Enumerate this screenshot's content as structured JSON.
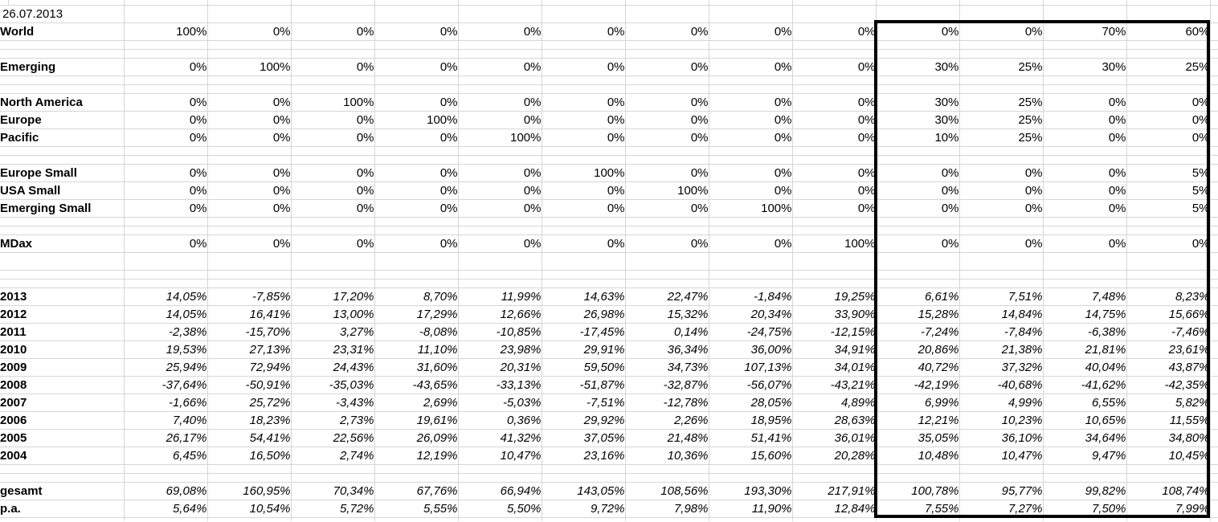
{
  "colors": {
    "background": "#ffffff",
    "gridline": "#d6d6d6",
    "text": "#000000",
    "range_border": "#000000"
  },
  "sheet": {
    "date": "26.07.2013",
    "rows": [
      {
        "kind": "sliver-top"
      },
      {
        "kind": "date",
        "label": "26.07.2013"
      },
      {
        "kind": "weight",
        "label": "World",
        "values": [
          "100%",
          "0%",
          "0%",
          "0%",
          "0%",
          "0%",
          "0%",
          "0%",
          "0%",
          "0%",
          "0%",
          "70%",
          "60%"
        ]
      },
      {
        "kind": "spacer"
      },
      {
        "kind": "spacer"
      },
      {
        "kind": "weight",
        "label": "Emerging",
        "values": [
          "0%",
          "100%",
          "0%",
          "0%",
          "0%",
          "0%",
          "0%",
          "0%",
          "0%",
          "30%",
          "25%",
          "30%",
          "25%"
        ]
      },
      {
        "kind": "spacer"
      },
      {
        "kind": "spacer"
      },
      {
        "kind": "weight",
        "label": "North America",
        "values": [
          "0%",
          "0%",
          "100%",
          "0%",
          "0%",
          "0%",
          "0%",
          "0%",
          "0%",
          "30%",
          "25%",
          "0%",
          "0%"
        ]
      },
      {
        "kind": "weight",
        "label": "Europe",
        "values": [
          "0%",
          "0%",
          "0%",
          "100%",
          "0%",
          "0%",
          "0%",
          "0%",
          "0%",
          "30%",
          "25%",
          "0%",
          "0%"
        ]
      },
      {
        "kind": "weight",
        "label": "Pacific",
        "values": [
          "0%",
          "0%",
          "0%",
          "0%",
          "100%",
          "0%",
          "0%",
          "0%",
          "0%",
          "10%",
          "25%",
          "0%",
          "0%"
        ]
      },
      {
        "kind": "spacer"
      },
      {
        "kind": "spacer"
      },
      {
        "kind": "weight",
        "label": "Europe Small",
        "values": [
          "0%",
          "0%",
          "0%",
          "0%",
          "0%",
          "100%",
          "0%",
          "0%",
          "0%",
          "0%",
          "0%",
          "0%",
          "5%"
        ]
      },
      {
        "kind": "weight",
        "label": "USA Small",
        "values": [
          "0%",
          "0%",
          "0%",
          "0%",
          "0%",
          "0%",
          "100%",
          "0%",
          "0%",
          "0%",
          "0%",
          "0%",
          "5%"
        ]
      },
      {
        "kind": "weight",
        "label": "Emerging Small",
        "values": [
          "0%",
          "0%",
          "0%",
          "0%",
          "0%",
          "0%",
          "0%",
          "100%",
          "0%",
          "0%",
          "0%",
          "0%",
          "5%"
        ]
      },
      {
        "kind": "spacer"
      },
      {
        "kind": "spacer"
      },
      {
        "kind": "weight",
        "label": "MDax",
        "values": [
          "0%",
          "0%",
          "0%",
          "0%",
          "0%",
          "0%",
          "0%",
          "0%",
          "100%",
          "0%",
          "0%",
          "0%",
          "0%"
        ]
      },
      {
        "kind": "empty"
      },
      {
        "kind": "spacer"
      },
      {
        "kind": "spacer"
      },
      {
        "kind": "return",
        "label": "2013",
        "values": [
          "14,05%",
          "-7,85%",
          "17,20%",
          "8,70%",
          "11,99%",
          "14,63%",
          "22,47%",
          "-1,84%",
          "19,25%",
          "6,61%",
          "7,51%",
          "7,48%",
          "8,23%"
        ]
      },
      {
        "kind": "return",
        "label": "2012",
        "values": [
          "14,05%",
          "16,41%",
          "13,00%",
          "17,29%",
          "12,66%",
          "26,98%",
          "15,32%",
          "20,34%",
          "33,90%",
          "15,28%",
          "14,84%",
          "14,75%",
          "15,66%"
        ]
      },
      {
        "kind": "return",
        "label": "2011",
        "values": [
          "-2,38%",
          "-15,70%",
          "3,27%",
          "-8,08%",
          "-10,85%",
          "-17,45%",
          "0,14%",
          "-24,75%",
          "-12,15%",
          "-7,24%",
          "-7,84%",
          "-6,38%",
          "-7,46%"
        ]
      },
      {
        "kind": "return",
        "label": "2010",
        "values": [
          "19,53%",
          "27,13%",
          "23,31%",
          "11,10%",
          "23,98%",
          "29,91%",
          "36,34%",
          "36,00%",
          "34,91%",
          "20,86%",
          "21,38%",
          "21,81%",
          "23,61%"
        ]
      },
      {
        "kind": "return",
        "label": "2009",
        "values": [
          "25,94%",
          "72,94%",
          "24,43%",
          "31,60%",
          "20,31%",
          "59,50%",
          "34,73%",
          "107,13%",
          "34,01%",
          "40,72%",
          "37,32%",
          "40,04%",
          "43,87%"
        ]
      },
      {
        "kind": "return",
        "label": "2008",
        "values": [
          "-37,64%",
          "-50,91%",
          "-35,03%",
          "-43,65%",
          "-33,13%",
          "-51,87%",
          "-32,87%",
          "-56,07%",
          "-43,21%",
          "-42,19%",
          "-40,68%",
          "-41,62%",
          "-42,35%"
        ]
      },
      {
        "kind": "return",
        "label": "2007",
        "values": [
          "-1,66%",
          "25,72%",
          "-3,43%",
          "2,69%",
          "-5,03%",
          "-7,51%",
          "-12,78%",
          "28,05%",
          "4,89%",
          "6,99%",
          "4,99%",
          "6,55%",
          "5,82%"
        ]
      },
      {
        "kind": "return",
        "label": "2006",
        "values": [
          "7,40%",
          "18,23%",
          "2,73%",
          "19,61%",
          "0,36%",
          "29,92%",
          "2,26%",
          "18,95%",
          "28,63%",
          "12,21%",
          "10,23%",
          "10,65%",
          "11,55%"
        ]
      },
      {
        "kind": "return",
        "label": "2005",
        "values": [
          "26,17%",
          "54,41%",
          "22,56%",
          "26,09%",
          "41,32%",
          "37,05%",
          "21,48%",
          "51,41%",
          "36,01%",
          "35,05%",
          "36,10%",
          "34,64%",
          "34,80%"
        ]
      },
      {
        "kind": "return",
        "label": "2004",
        "values": [
          "6,45%",
          "16,50%",
          "2,74%",
          "12,19%",
          "10,47%",
          "23,16%",
          "10,36%",
          "15,60%",
          "20,28%",
          "10,48%",
          "10,47%",
          "9,47%",
          "10,45%"
        ]
      },
      {
        "kind": "spacer"
      },
      {
        "kind": "spacer"
      },
      {
        "kind": "summary",
        "label": "gesamt",
        "values": [
          "69,08%",
          "160,95%",
          "70,34%",
          "67,76%",
          "66,94%",
          "143,05%",
          "108,56%",
          "193,30%",
          "217,91%",
          "100,78%",
          "95,77%",
          "99,82%",
          "108,74%"
        ]
      },
      {
        "kind": "summary",
        "label": "p.a.",
        "values": [
          "5,64%",
          "10,54%",
          "5,72%",
          "5,55%",
          "5,50%",
          "9,72%",
          "7,98%",
          "11,90%",
          "12,84%",
          "7,55%",
          "7,27%",
          "7,50%",
          "7,99%"
        ]
      },
      {
        "kind": "sliver-bottom"
      }
    ]
  }
}
